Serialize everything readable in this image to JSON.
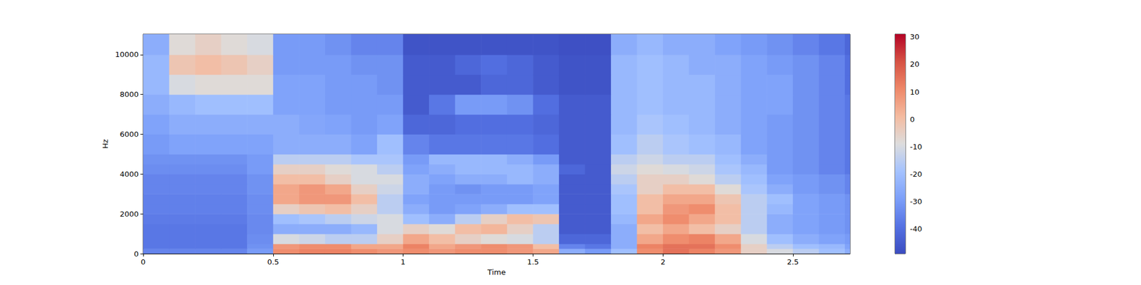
{
  "chart_data": {
    "type": "heatmap",
    "x_label": "Time",
    "y_label": "Hz",
    "xlim": [
      0,
      2.72
    ],
    "ylim": [
      0,
      11025
    ],
    "xticks": [
      0,
      0.5,
      1,
      1.5,
      2,
      2.5
    ],
    "yticks": [
      0,
      2000,
      4000,
      6000,
      8000,
      10000
    ],
    "grid": false,
    "x_edges": [
      0,
      0.1,
      0.2,
      0.3,
      0.4,
      0.5,
      0.6,
      0.7,
      0.8,
      0.9,
      1.0,
      1.1,
      1.2,
      1.3,
      1.4,
      1.5,
      1.6,
      1.7,
      1.8,
      1.9,
      2.0,
      2.1,
      2.2,
      2.3,
      2.4,
      2.5,
      2.6,
      2.7,
      2.72
    ],
    "y_edges": [
      0,
      250,
      500,
      1000,
      1500,
      2000,
      2500,
      3000,
      3500,
      4000,
      4500,
      5000,
      6000,
      7000,
      8000,
      9000,
      10000,
      11025
    ],
    "cells": [
      [
        -35,
        -35,
        -35,
        -35,
        -30,
        10,
        12,
        12,
        10,
        8,
        10,
        8,
        10,
        10,
        8,
        5,
        -25,
        -30,
        -20,
        10,
        15,
        12,
        8,
        -5,
        -10,
        -15,
        -20,
        -25
      ],
      [
        -38,
        -38,
        -38,
        -38,
        -32,
        8,
        10,
        10,
        5,
        5,
        12,
        5,
        8,
        10,
        8,
        0,
        -35,
        -38,
        -25,
        12,
        15,
        15,
        10,
        -5,
        -15,
        -20,
        -22,
        -28
      ],
      [
        -38,
        -38,
        -38,
        -38,
        -33,
        -10,
        -12,
        -15,
        -15,
        -5,
        5,
        0,
        -5,
        -8,
        -10,
        -15,
        -42,
        -42,
        -25,
        5,
        10,
        12,
        5,
        -10,
        -20,
        -25,
        -28,
        -30
      ],
      [
        -38,
        -38,
        -38,
        -38,
        -34,
        -25,
        -25,
        -25,
        -22,
        -10,
        -5,
        -8,
        0,
        2,
        -5,
        -15,
        -45,
        -45,
        -25,
        0,
        5,
        0,
        -5,
        -15,
        -25,
        -28,
        -30,
        -32
      ],
      [
        -37,
        -37,
        -37,
        -37,
        -34,
        -20,
        -18,
        -15,
        -12,
        -10,
        -20,
        -25,
        -15,
        -5,
        0,
        -2,
        -45,
        -45,
        -22,
        5,
        10,
        5,
        0,
        -15,
        -25,
        -28,
        -30,
        -32
      ],
      [
        -36,
        -36,
        -36,
        -36,
        -33,
        -5,
        -2,
        0,
        -5,
        -15,
        -25,
        -30,
        -28,
        -25,
        -20,
        -20,
        -45,
        -45,
        -20,
        0,
        8,
        10,
        0,
        -15,
        -22,
        -28,
        -30,
        -32
      ],
      [
        -36,
        -36,
        -36,
        -36,
        -33,
        5,
        8,
        8,
        0,
        -15,
        -28,
        -30,
        -30,
        -30,
        -30,
        -28,
        -45,
        -45,
        -20,
        0,
        5,
        5,
        -2,
        -15,
        -20,
        -28,
        -30,
        -32
      ],
      [
        -35,
        -35,
        -35,
        -35,
        -32,
        5,
        8,
        5,
        -5,
        -12,
        -25,
        -30,
        -32,
        -30,
        -30,
        -28,
        -45,
        -45,
        -18,
        -5,
        0,
        0,
        -8,
        -18,
        -25,
        -30,
        -32,
        -35
      ],
      [
        -35,
        -35,
        -35,
        -35,
        -32,
        0,
        0,
        -5,
        -10,
        -10,
        -25,
        -28,
        -25,
        -25,
        -22,
        -25,
        -45,
        -45,
        -15,
        -5,
        -5,
        -8,
        -15,
        -20,
        -28,
        -30,
        -32,
        -35
      ],
      [
        -33,
        -33,
        -33,
        -33,
        -30,
        -5,
        -5,
        -8,
        -10,
        -15,
        -28,
        -25,
        -22,
        -22,
        -22,
        -25,
        -42,
        -45,
        -12,
        -8,
        -10,
        -12,
        -18,
        -22,
        -30,
        -32,
        -35,
        -38
      ],
      [
        -32,
        -32,
        -32,
        -32,
        -30,
        -15,
        -15,
        -15,
        -18,
        -18,
        -30,
        -22,
        -22,
        -22,
        -25,
        -30,
        -45,
        -45,
        -15,
        -12,
        -15,
        -15,
        -20,
        -25,
        -30,
        -32,
        -35,
        -38
      ],
      [
        -30,
        -28,
        -28,
        -28,
        -28,
        -25,
        -25,
        -25,
        -28,
        -20,
        -35,
        -38,
        -38,
        -38,
        -38,
        -40,
        -45,
        -45,
        -20,
        -15,
        -18,
        -20,
        -22,
        -28,
        -30,
        -32,
        -35,
        -38
      ],
      [
        -28,
        -25,
        -25,
        -25,
        -25,
        -25,
        -27,
        -28,
        -30,
        -28,
        -42,
        -42,
        -40,
        -40,
        -40,
        -42,
        -45,
        -45,
        -22,
        -18,
        -20,
        -22,
        -25,
        -28,
        -30,
        -32,
        -35,
        -38
      ],
      [
        -25,
        -22,
        -20,
        -20,
        -20,
        -28,
        -28,
        -30,
        -30,
        -30,
        -45,
        -38,
        -30,
        -30,
        -32,
        -40,
        -45,
        -45,
        -22,
        -20,
        -22,
        -22,
        -25,
        -28,
        -28,
        -32,
        -35,
        -38
      ],
      [
        -22,
        -10,
        -8,
        -8,
        -8,
        -28,
        -28,
        -30,
        -30,
        -32,
        -45,
        -45,
        -45,
        -42,
        -42,
        -45,
        -47,
        -47,
        -22,
        -20,
        -22,
        -22,
        -25,
        -28,
        -28,
        -32,
        -35,
        -40
      ],
      [
        -22,
        -2,
        0,
        -2,
        -5,
        -30,
        -30,
        -30,
        -32,
        -32,
        -45,
        -45,
        -42,
        -40,
        -42,
        -45,
        -47,
        -47,
        -22,
        -20,
        -22,
        -25,
        -25,
        -28,
        -30,
        -32,
        -35,
        -40
      ],
      [
        -25,
        -8,
        -5,
        -8,
        -10,
        -30,
        -30,
        -32,
        -35,
        -35,
        -47,
        -47,
        -47,
        -47,
        -47,
        -47,
        -48,
        -48,
        -25,
        -22,
        -25,
        -25,
        -28,
        -30,
        -32,
        -35,
        -38,
        -42
      ]
    ],
    "colorbar": {
      "range": [
        -49,
        31
      ],
      "ticks": [
        -40,
        -30,
        -20,
        -10,
        0,
        10,
        20,
        30
      ]
    }
  }
}
